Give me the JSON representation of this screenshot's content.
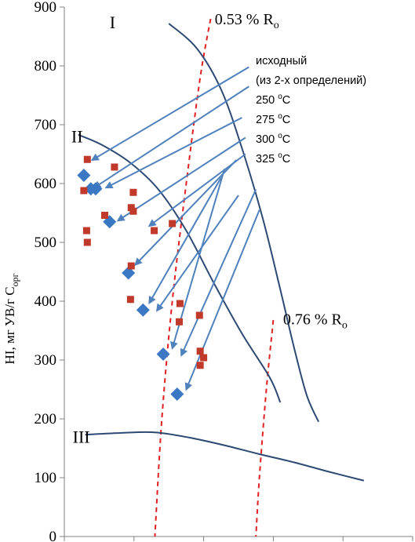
{
  "chart_data": {
    "type": "scatter",
    "title": "",
    "xlabel": "",
    "ylabel": "HI, мг УВ/г Сорг",
    "ylabel_parts": {
      "main": "HI, мг УВ/г С",
      "sub": "орг"
    },
    "ylim": [
      0,
      900
    ],
    "yticks": [
      0,
      100,
      200,
      300,
      400,
      500,
      600,
      700,
      800,
      900
    ],
    "ytick_labels": [
      "0",
      "100",
      "200",
      "300",
      "400",
      "500",
      "600",
      "700",
      "800",
      "900"
    ],
    "xlim": [
      0,
      5
    ],
    "xticks": [
      0,
      1,
      2,
      3,
      4,
      5
    ],
    "x_tick_labels_visible": false,
    "grid": false,
    "legend": {
      "position": "top-right",
      "lines": [
        {
          "text": "исходный"
        },
        {
          "text": "(из 2-х определений)"
        },
        {
          "text": "250 ",
          "sup": "o",
          "tail": "C"
        },
        {
          "text": "275 ",
          "sup": "o",
          "tail": "C"
        },
        {
          "text": "300 ",
          "sup": "o",
          "tail": "C"
        },
        {
          "text": "325 ",
          "sup": "o",
          "tail": "C"
        }
      ]
    },
    "colors": {
      "curve": "#2c4a73",
      "iso": "#e02020",
      "diamond": "#3a78c3",
      "square": "#c0392b",
      "arrow": "#4f81bd",
      "axis": "#808080"
    },
    "series": [
      {
        "name": "diamonds",
        "marker": "diamond",
        "points": [
          {
            "x": 0.28,
            "y": 614
          },
          {
            "x": 0.38,
            "y": 591
          },
          {
            "x": 0.45,
            "y": 591
          },
          {
            "x": 0.65,
            "y": 535
          },
          {
            "x": 0.92,
            "y": 448
          },
          {
            "x": 1.13,
            "y": 385
          },
          {
            "x": 1.42,
            "y": 310
          },
          {
            "x": 1.62,
            "y": 242
          }
        ]
      },
      {
        "name": "squares",
        "marker": "square",
        "points": [
          {
            "x": 0.33,
            "y": 641
          },
          {
            "x": 0.28,
            "y": 588
          },
          {
            "x": 0.32,
            "y": 520
          },
          {
            "x": 0.33,
            "y": 500
          },
          {
            "x": 0.72,
            "y": 628
          },
          {
            "x": 0.58,
            "y": 546
          },
          {
            "x": 0.99,
            "y": 585
          },
          {
            "x": 0.96,
            "y": 559
          },
          {
            "x": 0.99,
            "y": 553
          },
          {
            "x": 1.29,
            "y": 520
          },
          {
            "x": 1.55,
            "y": 532
          },
          {
            "x": 0.96,
            "y": 460
          },
          {
            "x": 0.95,
            "y": 403
          },
          {
            "x": 1.66,
            "y": 396
          },
          {
            "x": 1.65,
            "y": 365
          },
          {
            "x": 1.94,
            "y": 376
          },
          {
            "x": 1.95,
            "y": 315
          },
          {
            "x": 2.0,
            "y": 304
          },
          {
            "x": 1.95,
            "y": 291
          }
        ]
      }
    ],
    "curves": [
      {
        "label": "I",
        "label_at": {
          "x": 0.65,
          "y": 875
        },
        "points": [
          [
            1.5,
            872
          ],
          [
            1.9,
            830
          ],
          [
            2.25,
            760
          ],
          [
            2.55,
            660
          ],
          [
            2.85,
            540
          ],
          [
            3.1,
            420
          ],
          [
            3.3,
            320
          ],
          [
            3.48,
            240
          ],
          [
            3.65,
            195
          ]
        ]
      },
      {
        "label": "II",
        "label_at": {
          "x": 0.1,
          "y": 681
        },
        "points": [
          [
            0.2,
            683
          ],
          [
            0.55,
            665
          ],
          [
            0.95,
            635
          ],
          [
            1.35,
            590
          ],
          [
            1.75,
            520
          ],
          [
            2.15,
            430
          ],
          [
            2.55,
            345
          ],
          [
            2.95,
            270
          ],
          [
            3.1,
            228
          ]
        ]
      },
      {
        "label": "III",
        "label_at": {
          "x": 0.12,
          "y": 170
        },
        "points": [
          [
            0.3,
            173
          ],
          [
            0.8,
            176
          ],
          [
            1.3,
            177
          ],
          [
            1.8,
            168
          ],
          [
            2.3,
            155
          ],
          [
            2.8,
            140
          ],
          [
            3.3,
            126
          ],
          [
            3.8,
            110
          ],
          [
            4.3,
            95
          ]
        ]
      }
    ],
    "isolines": [
      {
        "label_main": "0.53 % R",
        "label_sub": "o",
        "label_at": {
          "x": 2.16,
          "y": 880
        },
        "points": [
          [
            2.1,
            880
          ],
          [
            1.95,
            780
          ],
          [
            1.75,
            600
          ],
          [
            1.55,
            400
          ],
          [
            1.4,
            200
          ],
          [
            1.3,
            0
          ]
        ]
      },
      {
        "label_main": "0.76 % R",
        "label_sub": "o",
        "label_at": {
          "x": 3.14,
          "y": 370
        },
        "points": [
          [
            3.0,
            368
          ],
          [
            2.9,
            250
          ],
          [
            2.8,
            100
          ],
          [
            2.75,
            0
          ]
        ]
      }
    ],
    "arrows": [
      {
        "from": {
          "x": 2.65,
          "y": 798
        },
        "to": {
          "x": 0.4,
          "y": 640
        }
      },
      {
        "from": {
          "x": 2.65,
          "y": 765
        },
        "to": {
          "x": 0.43,
          "y": 593
        }
      },
      {
        "from": {
          "x": 2.55,
          "y": 712
        },
        "to": {
          "x": 0.6,
          "y": 593
        }
      },
      {
        "from": {
          "x": 2.6,
          "y": 678
        },
        "to": {
          "x": 0.77,
          "y": 537
        }
      },
      {
        "from": {
          "x": 2.6,
          "y": 650
        },
        "to": {
          "x": 1.22,
          "y": 528
        }
      },
      {
        "from": {
          "x": 2.47,
          "y": 640
        },
        "to": {
          "x": 1.02,
          "y": 462
        }
      },
      {
        "from": {
          "x": 2.25,
          "y": 610
        },
        "to": {
          "x": 1.22,
          "y": 397
        }
      },
      {
        "from": {
          "x": 2.5,
          "y": 580
        },
        "to": {
          "x": 1.33,
          "y": 384
        }
      },
      {
        "from": {
          "x": 2.3,
          "y": 625
        },
        "to": {
          "x": 1.55,
          "y": 320
        }
      },
      {
        "from": {
          "x": 2.75,
          "y": 590
        },
        "to": {
          "x": 1.68,
          "y": 308
        }
      },
      {
        "from": {
          "x": 2.8,
          "y": 555
        },
        "to": {
          "x": 1.75,
          "y": 250
        }
      }
    ]
  }
}
